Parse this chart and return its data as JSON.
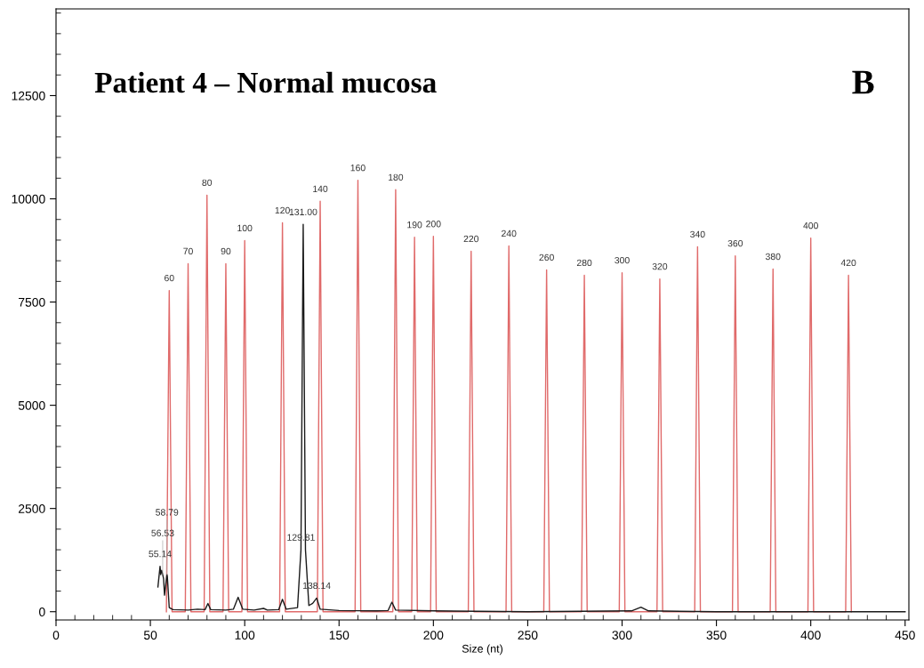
{
  "chart_data": {
    "type": "line",
    "title": "Patient 4 – Normal mucosa",
    "xlabel": "Size (nt)",
    "xlim": [
      0,
      452
    ],
    "xticks": [
      0,
      50,
      100,
      150,
      200,
      250,
      300,
      350,
      400,
      450
    ],
    "ylim": [
      -200,
      14600
    ],
    "yticks": [
      0,
      2500,
      5000,
      7500,
      10000,
      12500
    ],
    "grid": false,
    "legend": false,
    "marker": "none",
    "line_style": "solid",
    "series": [
      {
        "color": "#e06a6a",
        "x": [
          58.5,
          60,
          61.5,
          68.5,
          70,
          71.5,
          78.5,
          80,
          81.5,
          88.5,
          90,
          91.5,
          98.5,
          100,
          101.5,
          118.5,
          120,
          121.5,
          138.5,
          140,
          141.5,
          158.5,
          160,
          161.5,
          178.5,
          180,
          181.5,
          188.5,
          190,
          191.5,
          198.5,
          200,
          201.5,
          218.5,
          220,
          221.5,
          238.5,
          240,
          241.5,
          258.5,
          260,
          261.5,
          278.5,
          280,
          281.5,
          298.5,
          300,
          301.5,
          318.5,
          320,
          321.5,
          338.5,
          340,
          341.5,
          358.5,
          360,
          361.5,
          378.5,
          380,
          381.5,
          398.5,
          400,
          401.5,
          418.5,
          420,
          421.5
        ],
        "values": [
          0,
          7780,
          0,
          0,
          8430,
          0,
          0,
          10090,
          0,
          0,
          8430,
          0,
          0,
          8990,
          0,
          0,
          9420,
          0,
          0,
          9940,
          0,
          0,
          10450,
          0,
          0,
          10220,
          0,
          0,
          9070,
          0,
          0,
          9090,
          0,
          0,
          8730,
          0,
          0,
          8860,
          0,
          0,
          8280,
          0,
          0,
          8150,
          0,
          0,
          8210,
          0,
          0,
          8060,
          0,
          0,
          8840,
          0,
          0,
          8620,
          0,
          0,
          8300,
          0,
          0,
          9050,
          0,
          0,
          8150,
          0
        ]
      },
      {
        "color": "#1a1a1a",
        "x": [
          54,
          55.14,
          55.5,
          56,
          56.53,
          57,
          57.5,
          58.79,
          59,
          60,
          62,
          70,
          75,
          79,
          80.5,
          82,
          90,
          94,
          96.5,
          99,
          105,
          110,
          112,
          118,
          120,
          122,
          128,
          129.81,
          131,
          132.2,
          134,
          136,
          138.14,
          140,
          150,
          170,
          176,
          178,
          180,
          200,
          250,
          305,
          310,
          314,
          350,
          450
        ],
        "values": [
          600,
          1100,
          900,
          1000,
          900,
          800,
          400,
          900,
          850,
          100,
          50,
          40,
          60,
          50,
          200,
          50,
          40,
          60,
          350,
          60,
          40,
          80,
          40,
          50,
          300,
          60,
          100,
          1500,
          9380,
          1500,
          150,
          200,
          330,
          60,
          30,
          20,
          30,
          230,
          40,
          20,
          0,
          20,
          110,
          20,
          0,
          0
        ]
      }
    ],
    "annotations": [
      {
        "text": "60",
        "x": 60,
        "y": 7780
      },
      {
        "text": "70",
        "x": 70,
        "y": 8430
      },
      {
        "text": "80",
        "x": 80,
        "y": 10090
      },
      {
        "text": "90",
        "x": 90,
        "y": 8430
      },
      {
        "text": "100",
        "x": 100,
        "y": 8990
      },
      {
        "text": "120",
        "x": 120,
        "y": 9420
      },
      {
        "text": "140",
        "x": 140,
        "y": 9940
      },
      {
        "text": "160",
        "x": 160,
        "y": 10450
      },
      {
        "text": "180",
        "x": 180,
        "y": 10220
      },
      {
        "text": "190",
        "x": 190,
        "y": 9070
      },
      {
        "text": "200",
        "x": 200,
        "y": 9090
      },
      {
        "text": "220",
        "x": 220,
        "y": 8730
      },
      {
        "text": "240",
        "x": 240,
        "y": 8860
      },
      {
        "text": "260",
        "x": 260,
        "y": 8280
      },
      {
        "text": "280",
        "x": 280,
        "y": 8150
      },
      {
        "text": "300",
        "x": 300,
        "y": 8210
      },
      {
        "text": "320",
        "x": 320,
        "y": 8060
      },
      {
        "text": "340",
        "x": 340,
        "y": 8840
      },
      {
        "text": "360",
        "x": 360,
        "y": 8620
      },
      {
        "text": "380",
        "x": 380,
        "y": 8300
      },
      {
        "text": "400",
        "x": 400,
        "y": 9050
      },
      {
        "text": "420",
        "x": 420,
        "y": 8150
      },
      {
        "text": "55.14",
        "x": 55.14,
        "y": 1100
      },
      {
        "text": "56.53",
        "x": 56.53,
        "y": 900
      },
      {
        "text": "58.79",
        "x": 58.79,
        "y": 900
      },
      {
        "text": "129.81",
        "x": 129.81,
        "y": 1500
      },
      {
        "text": "138.14",
        "x": 138.14,
        "y": 330
      },
      {
        "text": "131.00",
        "x": 131,
        "y": 9380
      },
      "B"
    ]
  }
}
